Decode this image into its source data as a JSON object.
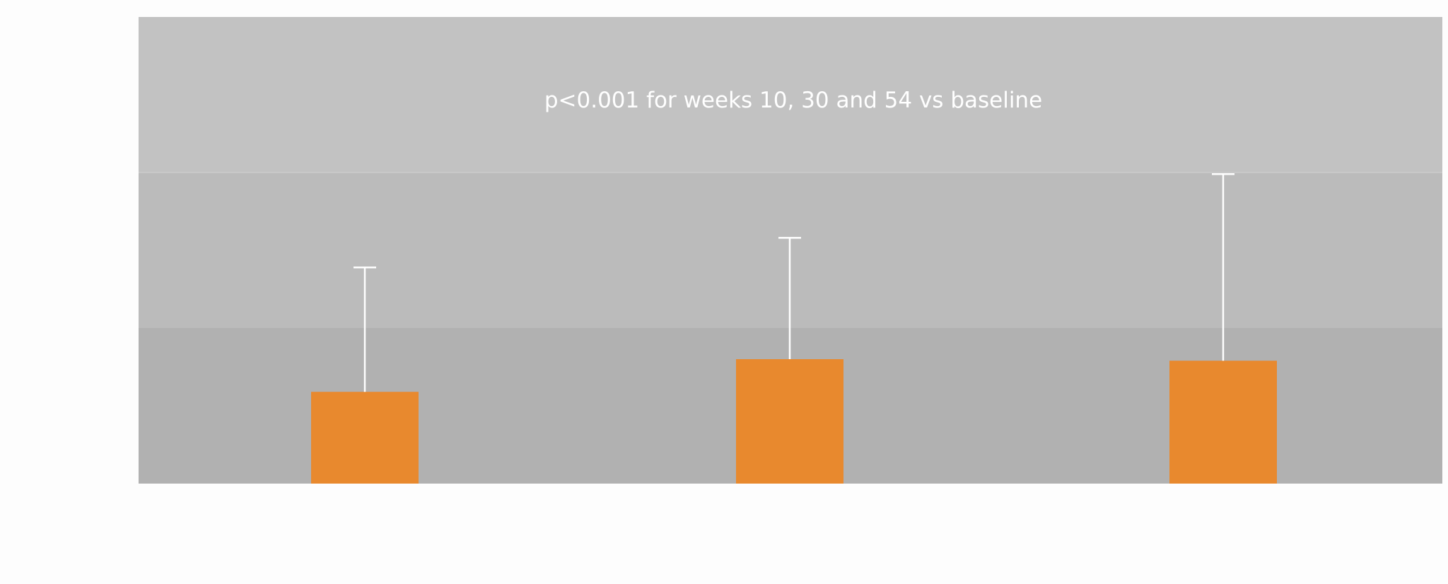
{
  "chart_data": {
    "type": "bar",
    "title": "",
    "xlabel": "",
    "ylabel": "",
    "categories": [
      "",
      "",
      ""
    ],
    "series": [
      {
        "values": [
          0.59,
          0.8,
          0.79
        ],
        "error_upper": [
          1.39,
          1.58,
          1.99
        ],
        "color": "#e8892e"
      }
    ],
    "ylim": [
      0,
      3
    ],
    "bands": [
      {
        "from": 0,
        "to": 1,
        "color": "#b1b1b1"
      },
      {
        "from": 1,
        "to": 2,
        "color": "#bbbbbb"
      },
      {
        "from": 2,
        "to": 3,
        "color": "#c2c2c2"
      }
    ],
    "annotation": "p<0.001 for weeks 10, 30 and 54 vs baseline",
    "error_bar_color": "#ffffff",
    "band_divider_color": "#d0d0d0",
    "grid": false,
    "legend": "none"
  }
}
